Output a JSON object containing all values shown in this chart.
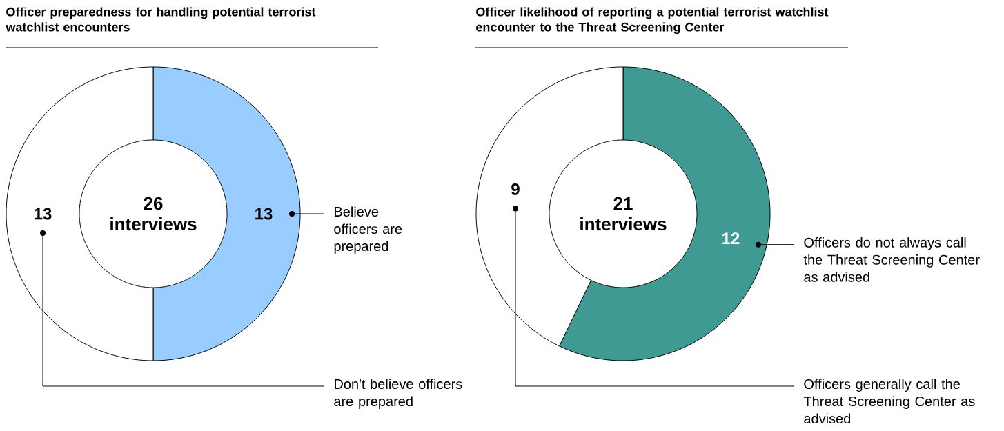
{
  "chart_data": [
    {
      "type": "donut",
      "title": "Officer preparedness for handling potential terrorist watchlist encounters",
      "categories": [
        "Believe officers are prepared",
        "Don't believe officers are prepared"
      ],
      "values": [
        13,
        13
      ],
      "colors": [
        "#99ccff",
        "#ffffff"
      ],
      "data_labels": true,
      "annotations": [
        "26 interviews"
      ]
    },
    {
      "type": "donut",
      "title": "Officer likelihood of reporting a potential terrorist watchlist encounter to the Threat Screening Center",
      "categories": [
        "Officers do not always call the Threat Screening Center as advised",
        "Officers generally call the Threat Screening Center as advised"
      ],
      "values": [
        12,
        9
      ],
      "colors": [
        "#409a94",
        "#ffffff"
      ],
      "data_labels": true,
      "annotations": [
        "21 interviews"
      ]
    }
  ]
}
